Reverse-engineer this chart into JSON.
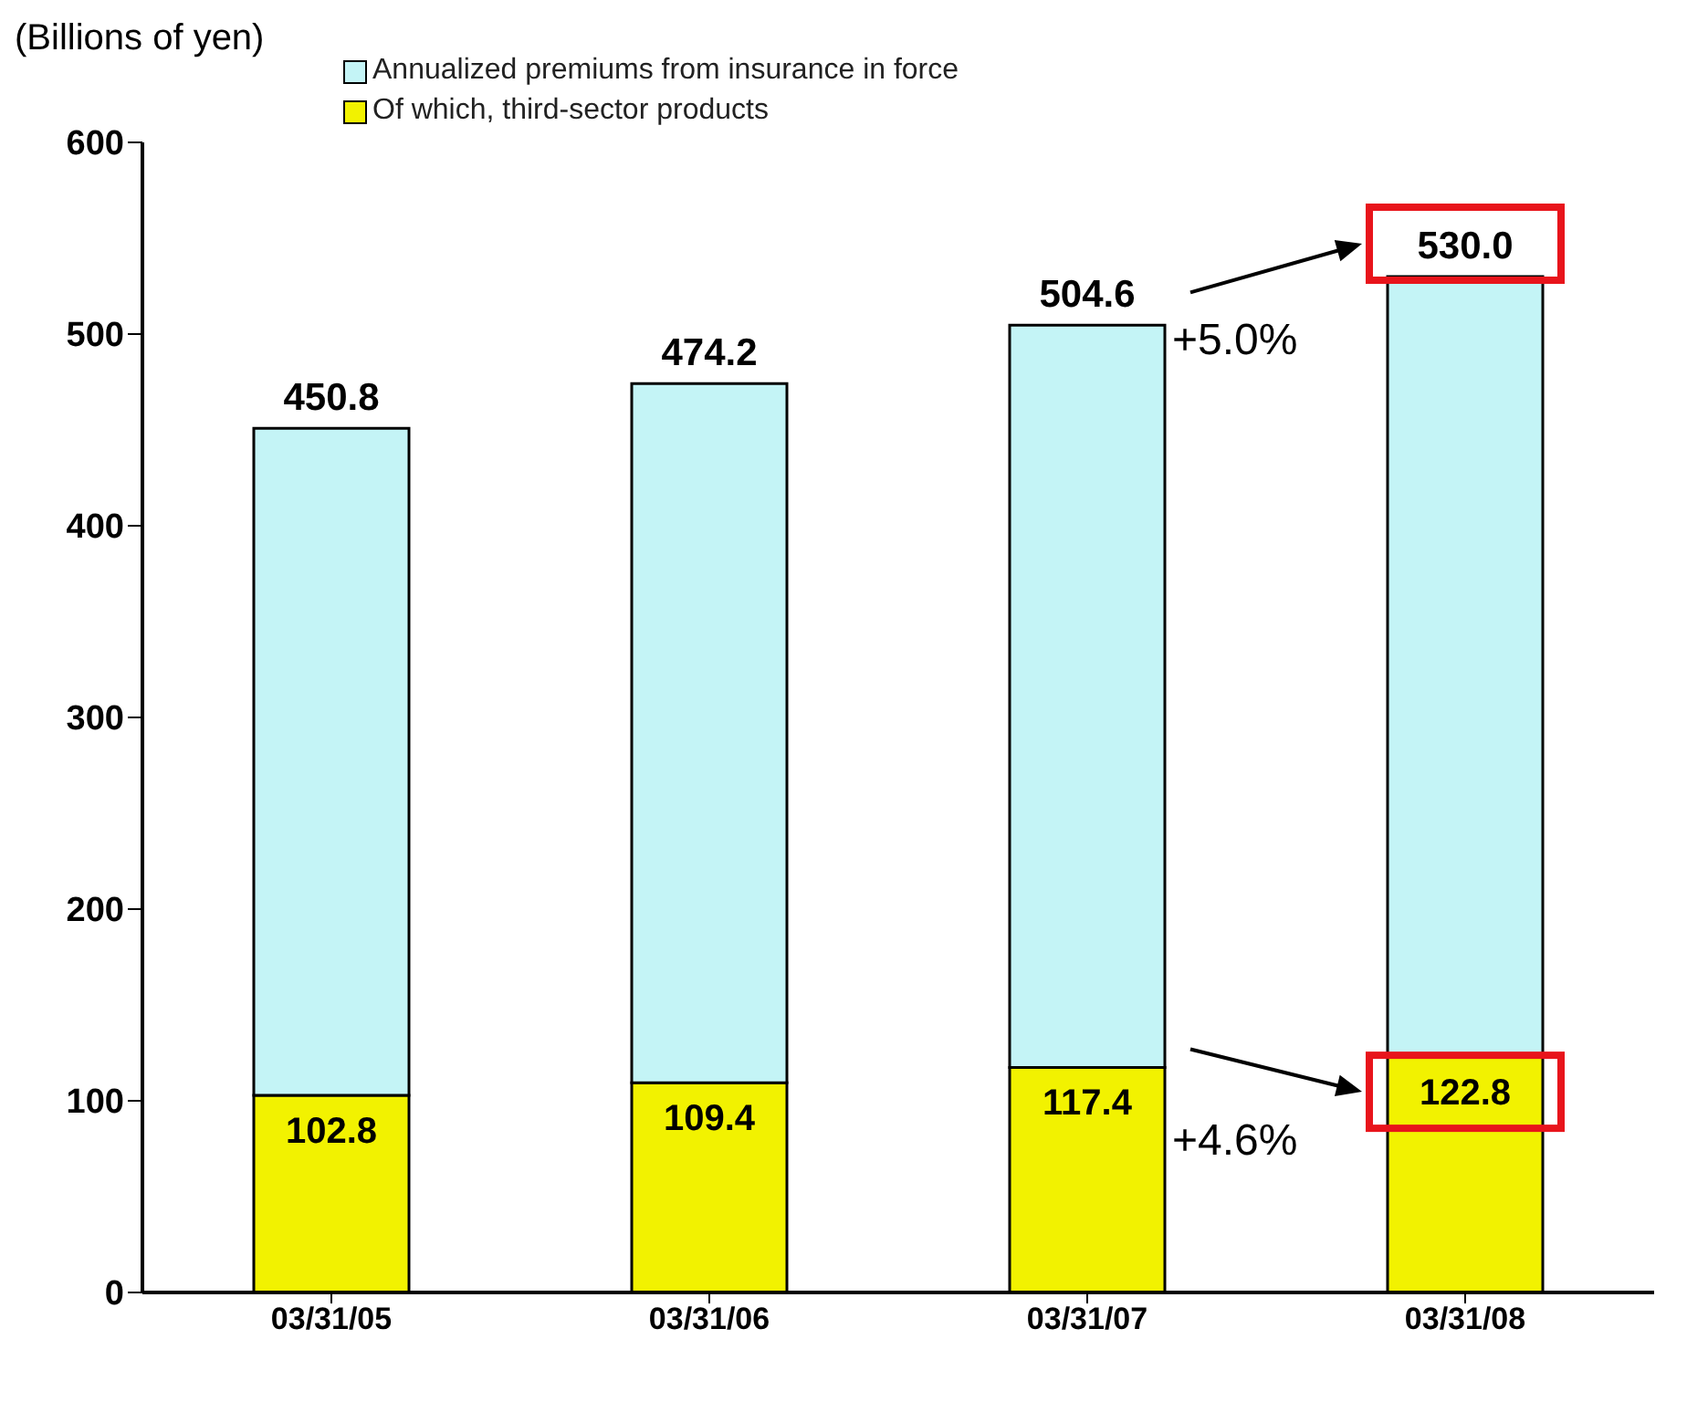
{
  "chart_data": {
    "type": "bar",
    "stacked": true,
    "ylabel": "(Billions of yen)",
    "categories": [
      "03/31/05",
      "03/31/06",
      "03/31/07",
      "03/31/08"
    ],
    "series": [
      {
        "name": "Of which, third-sector products",
        "color": "#f2f200",
        "values": [
          102.8,
          109.4,
          117.4,
          122.8
        ],
        "value_labels": [
          "102.8",
          "109.4",
          "117.4",
          "122.8"
        ]
      },
      {
        "name": "Annualized premiums from insurance in force",
        "color": "#c4f4f6",
        "values": [
          348.0,
          364.8,
          387.2,
          407.2
        ]
      }
    ],
    "totals": [
      "450.8",
      "474.2",
      "504.6",
      "530.0"
    ],
    "ylim": [
      0,
      600
    ],
    "yticks": [
      0,
      100,
      200,
      300,
      400,
      500,
      600
    ],
    "grid": false,
    "legend": "top",
    "annotations": [
      {
        "text": "+5.0%",
        "x": "03/31/07",
        "y": 504.6
      },
      {
        "text": "+4.6%",
        "x": "03/31/07",
        "y": 117.4
      }
    ]
  }
}
